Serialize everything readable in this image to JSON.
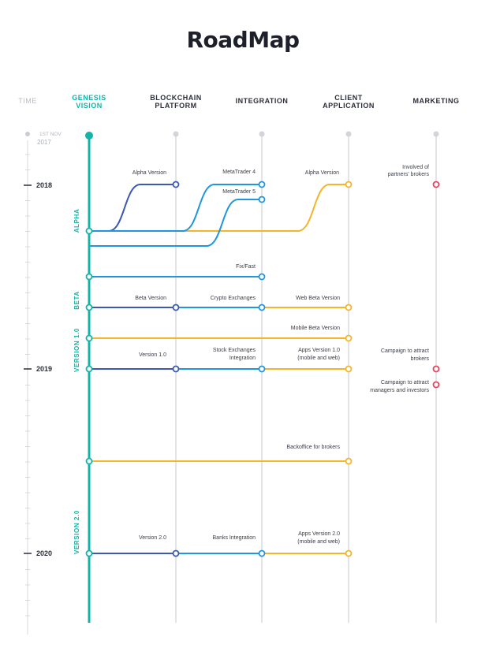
{
  "title": "RoadMap",
  "columns": {
    "time": "TIME",
    "genesis": [
      "GENESIS",
      "VISION"
    ],
    "blockchain": [
      "BLOCKCHAIN",
      "PLATFORM"
    ],
    "integration": "INTEGRATION",
    "client": [
      "CLIENT",
      "APPLICATION"
    ],
    "marketing": "MARKETING"
  },
  "start": {
    "line1": "1ST NOV",
    "line2": "2017"
  },
  "years": [
    "2018",
    "2019",
    "2020"
  ],
  "phases": [
    "ALPHA",
    "BETA",
    "VERSION 1.0",
    "VERSION 2.0"
  ],
  "colors": {
    "teal": "#12b5a8",
    "navy": "#3b58b8",
    "blue": "#2196e0",
    "orange": "#f5b52b",
    "red": "#e8435a",
    "grey": "#d7d9de"
  },
  "milestones": {
    "alpha_version": "Alpha Version",
    "metatrader4": "MetaTrader 4",
    "metatrader5": "MetaTrader 5",
    "client_alpha": "Alpha Version",
    "partners": [
      "Involved of",
      "partners' brokers"
    ],
    "fixfast": "Fix/Fast",
    "beta_version": "Beta Version",
    "crypto": "Crypto Exchanges",
    "web_beta": "Web Beta Version",
    "mobile_beta": "Mobile Beta Version",
    "version10": "Version 1.0",
    "stock": [
      "Stock Exchanges",
      "Integration"
    ],
    "apps10": [
      "Apps Version 1.0",
      "(mobile and web)"
    ],
    "campaign_brokers": [
      "Campaign to attract",
      "brokers"
    ],
    "campaign_managers": [
      "Campaign to attract",
      "managers and investors"
    ],
    "backoffice": "Backoffice for brokers",
    "version20": "Version 2.0",
    "banks": "Banks Integration",
    "apps20": [
      "Apps Version 2.0",
      "(mobile and web)"
    ]
  }
}
